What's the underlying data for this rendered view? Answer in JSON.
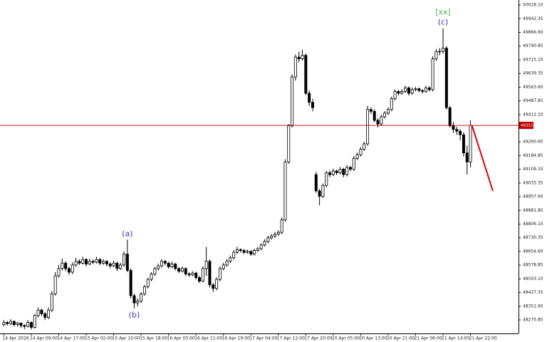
{
  "chart_data": {
    "type": "candlestick",
    "up_color": "#ffffff",
    "down_color": "#000000",
    "grid": false,
    "ylim": [
      48201,
      50046
    ],
    "yticks": [
      {
        "value": 50018.1,
        "label": "50018.10"
      },
      {
        "value": 49942.35,
        "label": "49942.35"
      },
      {
        "value": 49866.6,
        "label": "49866.60"
      },
      {
        "value": 49790.85,
        "label": "49790.85"
      },
      {
        "value": 49715.1,
        "label": "49715.10"
      },
      {
        "value": 49639.35,
        "label": "49639.35"
      },
      {
        "value": 49563.6,
        "label": "49563.60"
      },
      {
        "value": 49487.85,
        "label": "49487.85"
      },
      {
        "value": 49412.1,
        "label": "49412.10"
      },
      {
        "value": 49260.6,
        "label": "49260.60"
      },
      {
        "value": 49184.85,
        "label": "49184.85"
      },
      {
        "value": 49109.1,
        "label": "49109.10"
      },
      {
        "value": 49033.35,
        "label": "49033.35"
      },
      {
        "value": 48957.6,
        "label": "48957.60"
      },
      {
        "value": 48881.85,
        "label": "48881.85"
      },
      {
        "value": 48806.1,
        "label": "48806.10"
      },
      {
        "value": 48730.35,
        "label": "48730.35"
      },
      {
        "value": 48654.6,
        "label": "48654.60"
      },
      {
        "value": 48578.85,
        "label": "48578.85"
      },
      {
        "value": 48503.1,
        "label": "48503.10"
      },
      {
        "value": 48427.35,
        "label": "48427.35"
      },
      {
        "value": 48351.6,
        "label": "48351.60"
      },
      {
        "value": 48275.85,
        "label": "48275.85"
      }
    ],
    "current_price": {
      "value": 49352.42,
      "color": "#c00000"
    },
    "annotations": [
      {
        "text": "(a)",
        "at": 36,
        "side": "above",
        "color": "#3a3ab0"
      },
      {
        "text": "(b)",
        "at": 38,
        "side": "below",
        "color": "#3a3ab0"
      },
      {
        "text": "(c)",
        "at": 128,
        "side": "above",
        "color": "#3a3ab0"
      },
      {
        "text": "[xx]",
        "at": 128,
        "side": "top",
        "color": "#4caf50"
      }
    ],
    "categories": [
      "14 Apr 2026",
      null,
      null,
      null,
      null,
      null,
      null,
      null,
      "14 Apr 09:00",
      null,
      null,
      null,
      null,
      null,
      null,
      null,
      "14 Apr 17:00",
      null,
      null,
      null,
      null,
      null,
      null,
      null,
      "15 Apr 02:00",
      null,
      null,
      null,
      null,
      null,
      null,
      null,
      "15 Apr 10:00",
      null,
      null,
      null,
      null,
      null,
      null,
      null,
      "15 Apr 18:00",
      null,
      null,
      null,
      null,
      null,
      null,
      null,
      "16 Apr 03:00",
      null,
      null,
      null,
      null,
      null,
      null,
      null,
      "16 Apr 11:00",
      null,
      null,
      null,
      null,
      null,
      null,
      null,
      "16 Apr 19:00",
      null,
      null,
      null,
      null,
      null,
      null,
      null,
      "17 Apr 04:00",
      null,
      null,
      null,
      null,
      null,
      null,
      null,
      "17 Apr 12:00",
      null,
      null,
      null,
      null,
      null,
      null,
      null,
      "17 Apr 20:00",
      null,
      null,
      null,
      null,
      null,
      null,
      null,
      "20 Apr 05:00",
      null,
      null,
      null,
      null,
      null,
      null,
      null,
      "20 Apr 13:00",
      null,
      null,
      null,
      null,
      null,
      null,
      null,
      "20 Apr 21:00",
      null,
      null,
      null,
      null,
      null,
      null,
      null,
      "21 Apr 06:00",
      null,
      null,
      null,
      null,
      null,
      null,
      null,
      "21 Apr 14:00",
      null,
      null,
      null,
      null,
      null,
      null,
      null,
      "21 Apr 22:00"
    ],
    "ohlc": [
      [
        48250,
        48275,
        48240,
        48262
      ],
      [
        48262,
        48270,
        48245,
        48255
      ],
      [
        48255,
        48280,
        48248,
        48268
      ],
      [
        48268,
        48272,
        48240,
        48250
      ],
      [
        48250,
        48265,
        48238,
        48258
      ],
      [
        48258,
        48262,
        48232,
        48245
      ],
      [
        48245,
        48252,
        48225,
        48240
      ],
      [
        48240,
        48275,
        48235,
        48262
      ],
      [
        48262,
        48268,
        48222,
        48235
      ],
      [
        48235,
        48310,
        48228,
        48300
      ],
      [
        48300,
        48345,
        48290,
        48330
      ],
      [
        48330,
        48338,
        48298,
        48310
      ],
      [
        48310,
        48320,
        48275,
        48290
      ],
      [
        48290,
        48345,
        48280,
        48330
      ],
      [
        48330,
        48435,
        48320,
        48420
      ],
      [
        48420,
        48540,
        48410,
        48520
      ],
      [
        48520,
        48580,
        48510,
        48560
      ],
      [
        48560,
        48615,
        48550,
        48590
      ],
      [
        48590,
        48600,
        48545,
        48560
      ],
      [
        48560,
        48570,
        48525,
        48540
      ],
      [
        48540,
        48595,
        48530,
        48580
      ],
      [
        48580,
        48620,
        48570,
        48600
      ],
      [
        48600,
        48612,
        48580,
        48590
      ],
      [
        48590,
        48625,
        48582,
        48610
      ],
      [
        48610,
        48618,
        48572,
        48585
      ],
      [
        48585,
        48615,
        48578,
        48600
      ],
      [
        48600,
        48610,
        48585,
        48595
      ],
      [
        48595,
        48625,
        48588,
        48610
      ],
      [
        48610,
        48618,
        48578,
        48590
      ],
      [
        48590,
        48612,
        48580,
        48600
      ],
      [
        48600,
        48608,
        48572,
        48585
      ],
      [
        48585,
        48595,
        48562,
        48575
      ],
      [
        48575,
        48602,
        48568,
        48590
      ],
      [
        48590,
        48598,
        48548,
        48560
      ],
      [
        48560,
        48592,
        48552,
        48580
      ],
      [
        48580,
        48655,
        48570,
        48640
      ],
      [
        48640,
        48720,
        48540,
        48550
      ],
      [
        48550,
        48560,
        48395,
        48410
      ],
      [
        48410,
        48420,
        48340,
        48370
      ],
      [
        48370,
        48395,
        48350,
        48380
      ],
      [
        48380,
        48430,
        48370,
        48420
      ],
      [
        48420,
        48470,
        48410,
        48460
      ],
      [
        48460,
        48510,
        48450,
        48500
      ],
      [
        48500,
        48540,
        48490,
        48530
      ],
      [
        48530,
        48570,
        48520,
        48560
      ],
      [
        48560,
        48588,
        48550,
        48575
      ],
      [
        48575,
        48612,
        48565,
        48600
      ],
      [
        48600,
        48608,
        48578,
        48590
      ],
      [
        48590,
        48598,
        48560,
        48570
      ],
      [
        48570,
        48598,
        48562,
        48585
      ],
      [
        48585,
        48592,
        48550,
        48560
      ],
      [
        48560,
        48568,
        48535,
        48545
      ],
      [
        48545,
        48572,
        48538,
        48560
      ],
      [
        48560,
        48568,
        48520,
        48530
      ],
      [
        48530,
        48540,
        48515,
        48525
      ],
      [
        48525,
        48545,
        48518,
        48535
      ],
      [
        48535,
        48542,
        48500,
        48510
      ],
      [
        48510,
        48520,
        48480,
        48490
      ],
      [
        48490,
        48572,
        48485,
        48560
      ],
      [
        48560,
        48680,
        48520,
        48600
      ],
      [
        48600,
        48610,
        48455,
        48470
      ],
      [
        48470,
        48480,
        48430,
        48450
      ],
      [
        48450,
        48512,
        48440,
        48500
      ],
      [
        48500,
        48572,
        48490,
        48560
      ],
      [
        48560,
        48592,
        48550,
        48580
      ],
      [
        48580,
        48612,
        48570,
        48600
      ],
      [
        48600,
        48632,
        48590,
        48620
      ],
      [
        48620,
        48662,
        48610,
        48650
      ],
      [
        48650,
        48680,
        48640,
        48665
      ],
      [
        48665,
        48672,
        48648,
        48660
      ],
      [
        48660,
        48668,
        48640,
        48650
      ],
      [
        48650,
        48665,
        48642,
        48655
      ],
      [
        48655,
        48662,
        48630,
        48640
      ],
      [
        48640,
        48670,
        48632,
        48660
      ],
      [
        48660,
        48680,
        48652,
        48670
      ],
      [
        48670,
        48700,
        48662,
        48690
      ],
      [
        48690,
        48722,
        48682,
        48710
      ],
      [
        48710,
        48742,
        48700,
        48730
      ],
      [
        48730,
        48752,
        48720,
        48740
      ],
      [
        48740,
        48762,
        48730,
        48750
      ],
      [
        48750,
        48772,
        48740,
        48760
      ],
      [
        48760,
        48842,
        48750,
        48830
      ],
      [
        48830,
        49165,
        48820,
        49150
      ],
      [
        49150,
        49360,
        49140,
        49350
      ],
      [
        49350,
        49635,
        49340,
        49620
      ],
      [
        49620,
        49745,
        49600,
        49730
      ],
      [
        49730,
        49760,
        49700,
        49720
      ],
      [
        49720,
        49770,
        49710,
        49740
      ],
      [
        49740,
        49750,
        49520,
        49530
      ],
      [
        49530,
        49545,
        49460,
        49480
      ],
      [
        49480,
        49500,
        49430,
        49450
      ],
      [
        49080,
        49095,
        48980,
        48990
      ],
      [
        48990,
        49000,
        48910,
        48960
      ],
      [
        48960,
        49030,
        48950,
        49020
      ],
      [
        49020,
        49100,
        49010,
        49090
      ],
      [
        49090,
        49102,
        49065,
        49080
      ],
      [
        49080,
        49112,
        49072,
        49100
      ],
      [
        49100,
        49108,
        49078,
        49090
      ],
      [
        49090,
        49122,
        49082,
        49110
      ],
      [
        49110,
        49118,
        49065,
        49080
      ],
      [
        49080,
        49132,
        49070,
        49120
      ],
      [
        49120,
        49128,
        49098,
        49110
      ],
      [
        49110,
        49182,
        49100,
        49170
      ],
      [
        49170,
        49202,
        49160,
        49190
      ],
      [
        49190,
        49232,
        49180,
        49220
      ],
      [
        49220,
        49262,
        49210,
        49250
      ],
      [
        49250,
        49460,
        49240,
        49440
      ],
      [
        49440,
        49452,
        49415,
        49430
      ],
      [
        49430,
        49440,
        49370,
        49380
      ],
      [
        49380,
        49392,
        49340,
        49360
      ],
      [
        49360,
        49412,
        49350,
        49400
      ],
      [
        49400,
        49432,
        49390,
        49420
      ],
      [
        49420,
        49452,
        49410,
        49440
      ],
      [
        49440,
        49512,
        49430,
        49500
      ],
      [
        49500,
        49552,
        49490,
        49540
      ],
      [
        49540,
        49548,
        49518,
        49530
      ],
      [
        49530,
        49552,
        49522,
        49540
      ],
      [
        49540,
        49572,
        49532,
        49560
      ],
      [
        49560,
        49568,
        49518,
        49530
      ],
      [
        49530,
        49562,
        49522,
        49550
      ],
      [
        49550,
        49565,
        49540,
        49555
      ],
      [
        49555,
        49562,
        49535,
        49545
      ],
      [
        49545,
        49552,
        49528,
        49540
      ],
      [
        49540,
        49572,
        49532,
        49560
      ],
      [
        49560,
        49568,
        49540,
        49550
      ],
      [
        49550,
        49735,
        49540,
        49720
      ],
      [
        49720,
        49775,
        49710,
        49760
      ],
      [
        49760,
        49780,
        49740,
        49762
      ],
      [
        49762,
        49890,
        49750,
        49780
      ],
      [
        49780,
        49790,
        49440,
        49450
      ],
      [
        49450,
        49460,
        49340,
        49350
      ],
      [
        49350,
        49372,
        49310,
        49330
      ],
      [
        49330,
        49345,
        49300,
        49320
      ],
      [
        49320,
        49332,
        49270,
        49300
      ],
      [
        49300,
        49315,
        49180,
        49200
      ],
      [
        49200,
        49240,
        49080,
        49150
      ],
      [
        49150,
        49380,
        49120,
        49352.42
      ]
    ]
  }
}
